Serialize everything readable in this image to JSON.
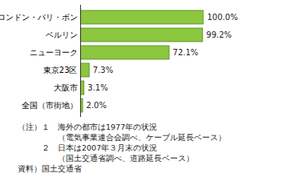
{
  "chart_data": {
    "type": "bar",
    "orientation": "horizontal",
    "categories": [
      "ロンドン・パリ・ボン",
      "ベルリン",
      "ニューヨーク",
      "東京23区",
      "大阪市",
      "全国（市街地）"
    ],
    "values": [
      100.0,
      99.2,
      72.1,
      7.3,
      3.1,
      2.0
    ],
    "value_labels": [
      "100.0%",
      "99.2%",
      "72.1%",
      "7.3%",
      "3.1%",
      "2.0%"
    ],
    "data_labels": true,
    "color": "#8dc63f",
    "xlim": [
      0,
      100
    ],
    "tick_labels": "y",
    "notes": [
      "（注）１　海外の都市は1977年の状況",
      "　　　　　（電気事業連合会調べ、ケーブル延長ベース）",
      "　　　２　日本は2007年３月末の状況",
      "　　　　　（国土交通省調べ、道路延長ベース）"
    ],
    "source": "資料）国土交通省"
  }
}
